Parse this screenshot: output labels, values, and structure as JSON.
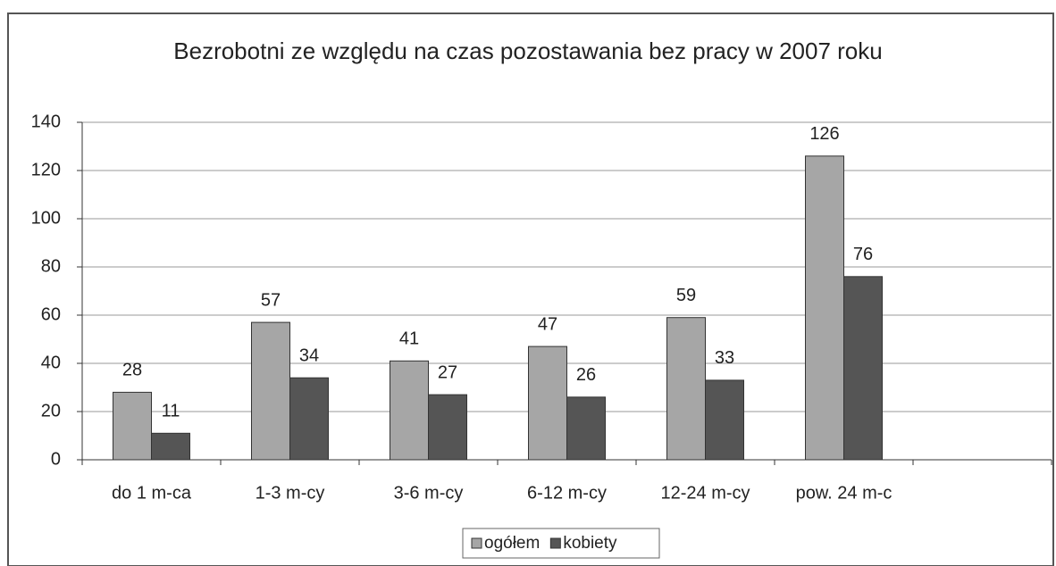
{
  "chart_data": {
    "type": "bar",
    "title": "Bezrobotni ze względu na czas pozostawania bez pracy w 2007 roku",
    "categories": [
      "do 1 m-ca",
      "1-3 m-cy",
      "3-6 m-cy",
      "6-12 m-cy",
      "12-24 m-cy",
      "pow. 24 m-c",
      null
    ],
    "series": [
      {
        "name": "ogółem",
        "color": "#a6a6a6",
        "values": [
          28,
          57,
          41,
          47,
          59,
          126,
          null
        ]
      },
      {
        "name": "kobiety",
        "color": "#555555",
        "values": [
          11,
          34,
          27,
          26,
          33,
          76,
          null
        ]
      }
    ],
    "ylim": [
      0,
      140
    ],
    "yticks": [
      0,
      20,
      40,
      60,
      80,
      100,
      120,
      140
    ],
    "grid": true,
    "legend": "bottom"
  }
}
